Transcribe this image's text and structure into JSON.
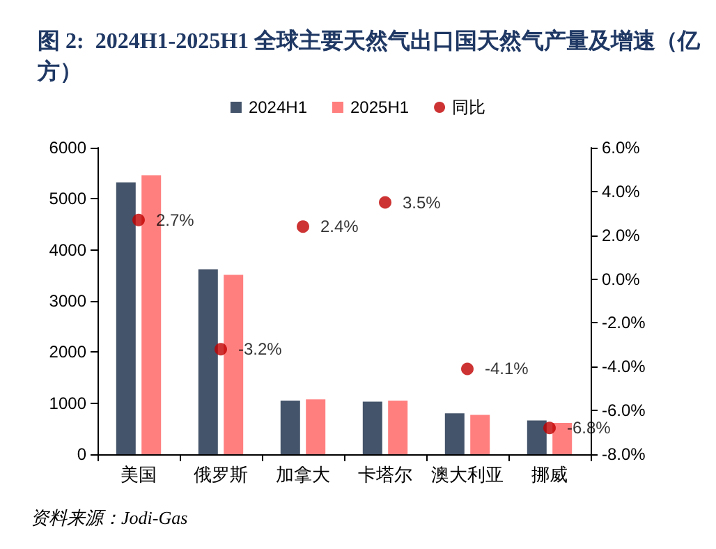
{
  "chart_data": {
    "type": "bar",
    "title": "图 2:  2024H1-2025H1 全球主要天然气出口国天然气产量及增速（亿方）",
    "categories": [
      "美国",
      "俄罗斯",
      "加拿大",
      "卡塔尔",
      "澳大利亚",
      "挪威"
    ],
    "series": [
      {
        "name": "2024H1",
        "color": "#44546a",
        "values": [
          5320,
          3620,
          1050,
          1030,
          800,
          660
        ]
      },
      {
        "name": "2025H1",
        "color": "#ff7f7f",
        "values": [
          5460,
          3510,
          1075,
          1050,
          770,
          615
        ]
      },
      {
        "name": "同比",
        "type": "scatter",
        "axis": "y2",
        "color": "#c00000",
        "values": [
          2.7,
          -3.2,
          2.4,
          3.5,
          -4.1,
          -6.8
        ],
        "value_labels": [
          "2.7%",
          "-3.2%",
          "2.4%",
          "3.5%",
          "-4.1%",
          "-6.8%"
        ]
      }
    ],
    "ylim": [
      0,
      6000
    ],
    "yticks": [
      0,
      1000,
      2000,
      3000,
      4000,
      5000,
      6000
    ],
    "y2lim": [
      -8,
      6
    ],
    "y2ticks": [
      {
        "value": -8,
        "label": "-8.0%"
      },
      {
        "value": -6,
        "label": "-6.0%"
      },
      {
        "value": -4,
        "label": "-4.0%"
      },
      {
        "value": -2,
        "label": "-2.0%"
      },
      {
        "value": 0,
        "label": "0.0%"
      },
      {
        "value": 2,
        "label": "2.0%"
      },
      {
        "value": 4,
        "label": "4.0%"
      },
      {
        "value": 6,
        "label": "6.0%"
      }
    ],
    "grid": false,
    "legend": "top",
    "marker": "circle",
    "annotations": [
      "资料来源：Jodi-Gas"
    ]
  }
}
